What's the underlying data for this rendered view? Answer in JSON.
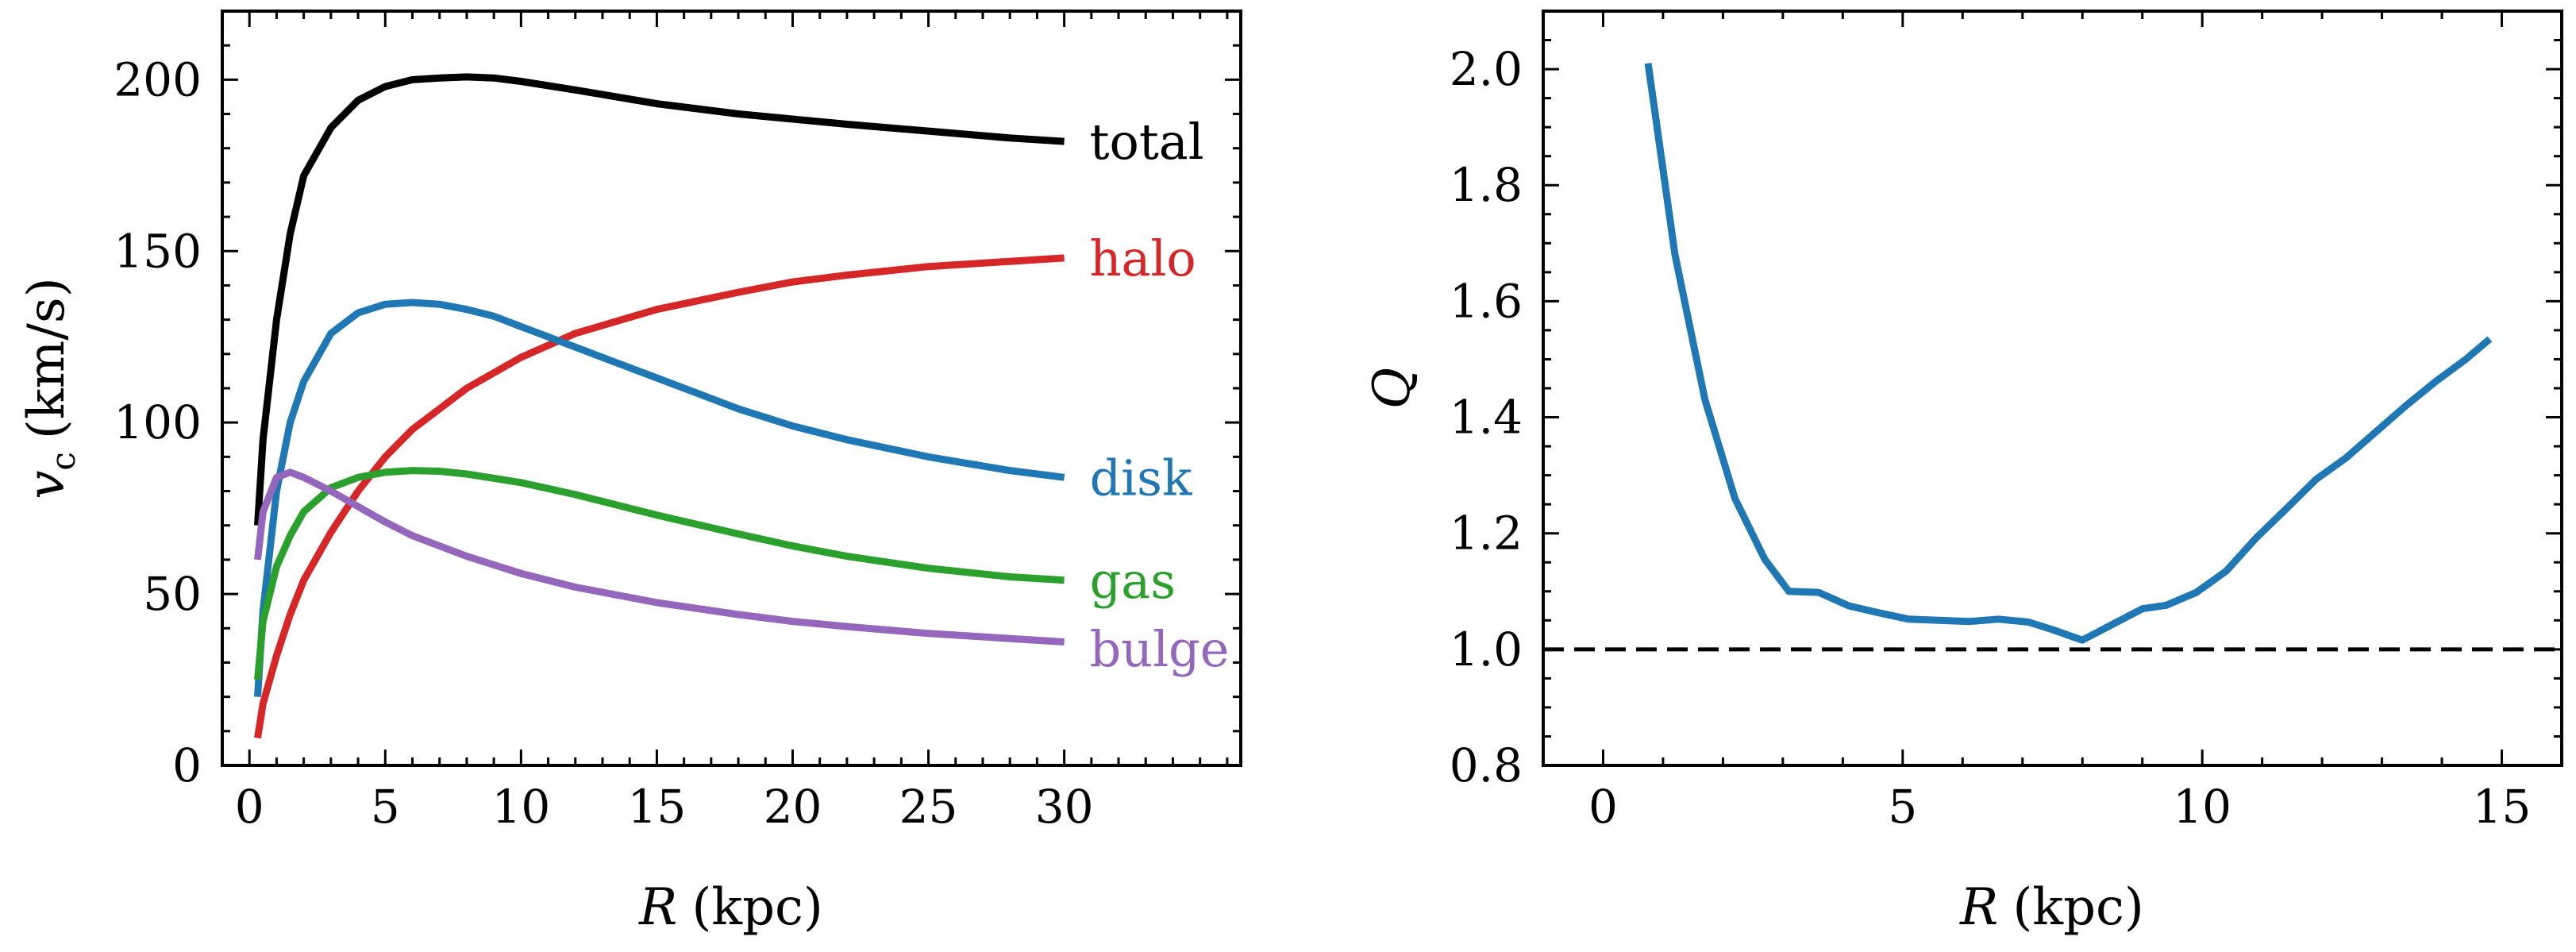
{
  "chart_data": [
    {
      "type": "line",
      "xlabel_symbol": "R",
      "xlabel_unit": "(kpc)",
      "ylabel_symbol": "v",
      "ylabel_subscript": "c",
      "ylabel_unit": "(km/s)",
      "xlim": [
        -1,
        36.5
      ],
      "ylim": [
        0,
        220
      ],
      "xticks": [
        0,
        5,
        10,
        15,
        20,
        25,
        30
      ],
      "yticks": [
        0,
        50,
        100,
        150,
        200
      ],
      "series": [
        {
          "name": "total",
          "color": "#000000",
          "x": [
            0.3,
            0.5,
            1,
            1.5,
            2,
            3,
            4,
            5,
            6,
            7,
            8,
            9,
            10,
            12,
            15,
            18,
            20,
            22,
            25,
            28,
            30
          ],
          "values": [
            70,
            95,
            130,
            155,
            172,
            186,
            194,
            198,
            200,
            200.5,
            200.8,
            200.5,
            199.5,
            197,
            193,
            190,
            188.5,
            187,
            185,
            183,
            182
          ]
        },
        {
          "name": "halo",
          "color": "#d62728",
          "x": [
            0.3,
            0.5,
            1,
            1.5,
            2,
            3,
            4,
            5,
            6,
            7,
            8,
            10,
            12,
            15,
            18,
            20,
            22,
            25,
            28,
            30
          ],
          "values": [
            8,
            18,
            32,
            44,
            54,
            68,
            80,
            90,
            98,
            104,
            110,
            119,
            126,
            133,
            138,
            141,
            143,
            145.5,
            147,
            148
          ]
        },
        {
          "name": "disk",
          "color": "#1f77b4",
          "x": [
            0.3,
            0.5,
            1,
            1.5,
            2,
            3,
            4,
            5,
            6,
            7,
            8,
            9,
            10,
            12,
            15,
            18,
            20,
            22,
            25,
            28,
            30
          ],
          "values": [
            20,
            45,
            80,
            100,
            112,
            126,
            132,
            134.5,
            135,
            134.5,
            133,
            131,
            128,
            122,
            113,
            104,
            99,
            95,
            90,
            86,
            84
          ]
        },
        {
          "name": "gas",
          "color": "#2ca02c",
          "x": [
            0.3,
            0.5,
            1,
            1.5,
            2,
            3,
            4,
            5,
            6,
            7,
            8,
            10,
            12,
            15,
            18,
            20,
            22,
            25,
            28,
            30
          ],
          "values": [
            25,
            42,
            58,
            67,
            74,
            81,
            84,
            85.5,
            86,
            85.8,
            85,
            82.5,
            79,
            73,
            67.5,
            64,
            61,
            57.5,
            55,
            54
          ]
        },
        {
          "name": "bulge",
          "color": "#9467bd",
          "x": [
            0.3,
            0.5,
            1,
            1.5,
            2,
            3,
            4,
            5,
            6,
            8,
            10,
            12,
            15,
            18,
            20,
            22,
            25,
            28,
            30
          ],
          "values": [
            60,
            74,
            84,
            85.5,
            84,
            80,
            75.5,
            71,
            67,
            61,
            56,
            52,
            47.5,
            44,
            42,
            40.5,
            38.5,
            37,
            36
          ]
        }
      ]
    },
    {
      "type": "line",
      "xlabel_symbol": "R",
      "xlabel_unit": "(kpc)",
      "ylabel_symbol": "Q",
      "xlim": [
        -1,
        16
      ],
      "ylim": [
        0.8,
        2.1
      ],
      "xticks": [
        0,
        5,
        10,
        15
      ],
      "yticks": [
        0.8,
        1.0,
        1.2,
        1.4,
        1.6,
        1.8,
        2.0
      ],
      "ytick_labels": [
        "0.8",
        "1.0",
        "1.2",
        "1.4",
        "1.6",
        "1.8",
        "2.0"
      ],
      "reference_line": {
        "y": 1.0,
        "style": "dashed",
        "color": "#000000"
      },
      "series": [
        {
          "name": "Q",
          "color": "#1f77b4",
          "x": [
            0.75,
            1.2,
            1.7,
            2.2,
            2.7,
            3.1,
            3.6,
            4.1,
            4.6,
            5.1,
            5.6,
            6.1,
            6.6,
            7.1,
            7.5,
            8.0,
            8.5,
            9.0,
            9.4,
            9.9,
            10.4,
            10.9,
            11.4,
            11.9,
            12.4,
            12.9,
            13.4,
            13.9,
            14.4,
            14.8
          ],
          "values": [
            2.01,
            1.68,
            1.43,
            1.26,
            1.155,
            1.1,
            1.098,
            1.075,
            1.063,
            1.052,
            1.05,
            1.048,
            1.052,
            1.047,
            1.034,
            1.016,
            1.043,
            1.07,
            1.076,
            1.098,
            1.135,
            1.192,
            1.242,
            1.293,
            1.33,
            1.375,
            1.42,
            1.462,
            1.5,
            1.535
          ]
        }
      ]
    }
  ]
}
